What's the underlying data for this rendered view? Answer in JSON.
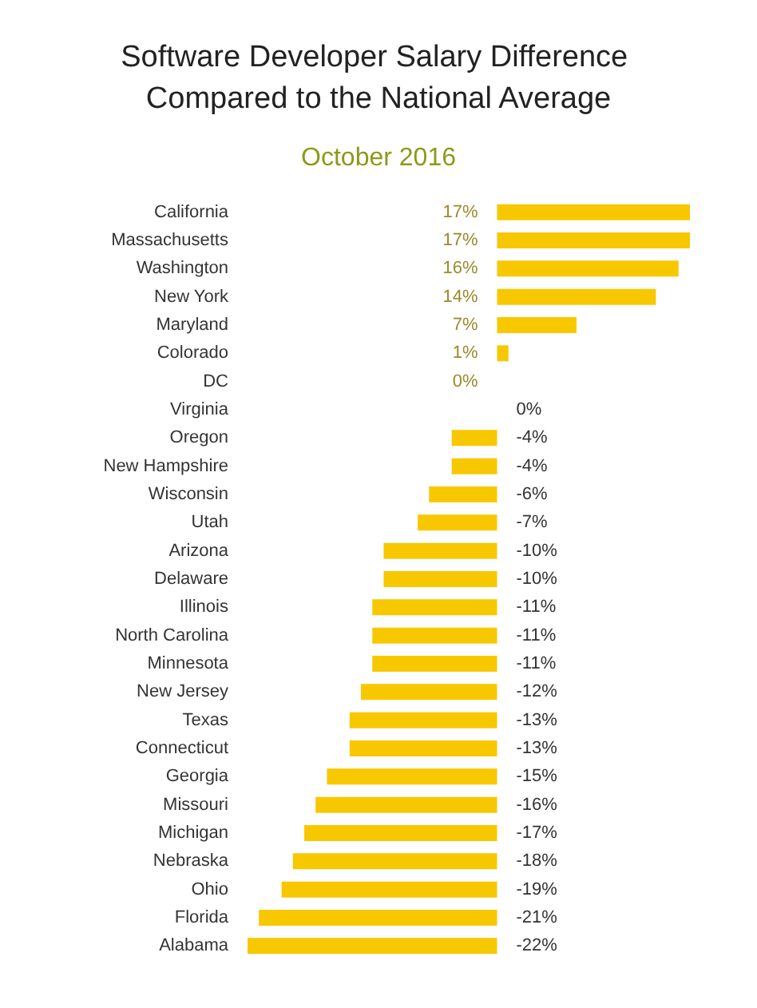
{
  "chart_data": {
    "type": "bar",
    "orientation": "horizontal",
    "title": "Software Developer Salary Difference Compared to the National Average",
    "subtitle": "October 2016",
    "categories": [
      "California",
      "Massachusetts",
      "Washington",
      "New York",
      "Maryland",
      "Colorado",
      "DC",
      "Virginia",
      "Oregon",
      "New Hampshire",
      "Wisconsin",
      "Utah",
      "Arizona",
      "Delaware",
      "Illinois",
      "North Carolina",
      "Minnesota",
      "New Jersey",
      "Texas",
      "Connecticut",
      "Georgia",
      "Missouri",
      "Michigan",
      "Nebraska",
      "Ohio",
      "Florida",
      "Alabama"
    ],
    "values": [
      17,
      17,
      16,
      14,
      7,
      1,
      0,
      0,
      -4,
      -4,
      -6,
      -7,
      -10,
      -10,
      -11,
      -11,
      -11,
      -12,
      -13,
      -13,
      -15,
      -16,
      -17,
      -18,
      -19,
      -21,
      -22
    ],
    "value_labels": [
      "17%",
      "17%",
      "16%",
      "14%",
      "7%",
      "1%",
      "0%",
      "0%",
      "-4%",
      "-4%",
      "-6%",
      "-7%",
      "-10%",
      "-10%",
      "-11%",
      "-11%",
      "-11%",
      "-12%",
      "-13%",
      "-13%",
      "-15%",
      "-16%",
      "-17%",
      "-18%",
      "-19%",
      "-21%",
      "-22%"
    ],
    "color": "#f7c800",
    "tick_labels": "y"
  }
}
